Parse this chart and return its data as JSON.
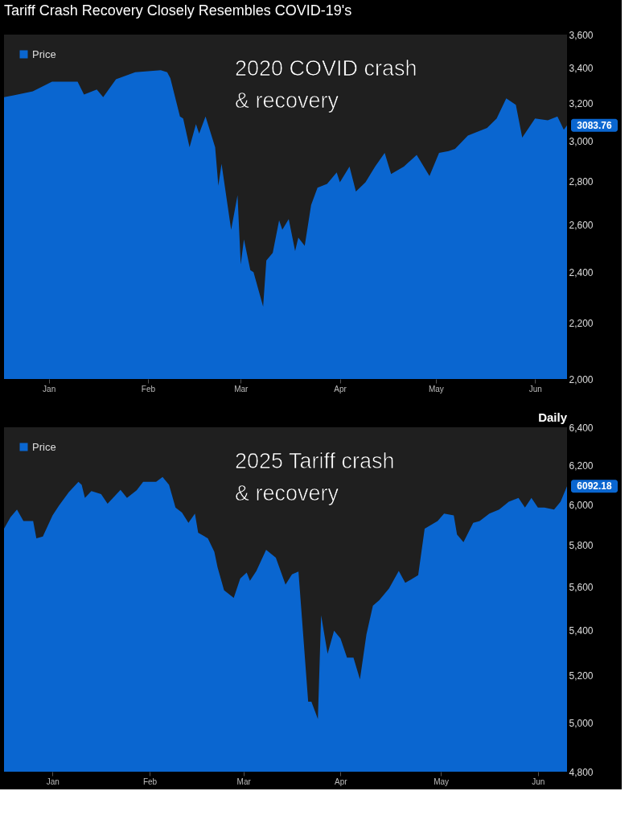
{
  "chart_data": [
    {
      "type": "area",
      "title": "Tariff Crash Recovery Closely Resembles COVID-19's",
      "log": true,
      "legend": "top left",
      "x": [
        "2020-01-01",
        "2020-01-04",
        "2020-01-10",
        "2020-01-16",
        "2020-01-24",
        "2020-01-26",
        "2020-01-30",
        "2020-02-01",
        "2020-02-05",
        "2020-02-11",
        "2020-02-19",
        "2020-02-21",
        "2020-02-22",
        "2020-02-25",
        "2020-02-26",
        "2020-02-28",
        "2020-03-01",
        "2020-03-02",
        "2020-03-04",
        "2020-03-07",
        "2020-03-08",
        "2020-03-09",
        "2020-03-12",
        "2020-03-14",
        "2020-03-15",
        "2020-03-16",
        "2020-03-18",
        "2020-03-19",
        "2020-03-22",
        "2020-03-23",
        "2020-03-25",
        "2020-03-27",
        "2020-03-28",
        "2020-03-30",
        "2020-04-01",
        "2020-04-02",
        "2020-04-04",
        "2020-04-06",
        "2020-04-08",
        "2020-04-11",
        "2020-04-14",
        "2020-04-15",
        "2020-04-18",
        "2020-04-20",
        "2020-04-23",
        "2020-04-26",
        "2020-04-29",
        "2020-05-01",
        "2020-05-05",
        "2020-05-09",
        "2020-05-13",
        "2020-05-16",
        "2020-05-19",
        "2020-05-21",
        "2020-05-25",
        "2020-05-31",
        "2020-06-03",
        "2020-06-06",
        "2020-06-09",
        "2020-06-11",
        "2020-06-15",
        "2020-06-19",
        "2020-06-22",
        "2020-06-24",
        "2020-06-25"
      ],
      "series": [
        {
          "name": "Price",
          "color": "#0a66d0",
          "values": [
            3235,
            3245,
            3268,
            3322,
            3322,
            3250,
            3278,
            3235,
            3336,
            3376,
            3388,
            3376,
            3342,
            3130,
            3120,
            2970,
            3090,
            3040,
            3130,
            2970,
            2782,
            2888,
            2580,
            2737,
            2432,
            2538,
            2408,
            2400,
            2263,
            2448,
            2480,
            2622,
            2580,
            2628,
            2488,
            2546,
            2510,
            2692,
            2772,
            2790,
            2846,
            2798,
            2874,
            2754,
            2798,
            2874,
            2942,
            2838,
            2874,
            2932,
            2828,
            2942,
            2951,
            2962,
            3030,
            3070,
            3120,
            3229,
            3194,
            3020,
            3120,
            3110,
            3130,
            3060,
            3083.76
          ]
        }
      ],
      "xlim": [
        "2020-01-01",
        "2020-06-25"
      ],
      "xticks": [
        {
          "value": "2020-01-15",
          "label": "Jan"
        },
        {
          "value": "2020-02-15",
          "label": "Feb"
        },
        {
          "value": "2020-03-15",
          "label": "Mar"
        },
        {
          "value": "2020-04-15",
          "label": "Apr"
        },
        {
          "value": "2020-05-15",
          "label": "May"
        },
        {
          "value": "2020-06-15",
          "label": "Jun"
        }
      ],
      "ylim": [
        2000,
        3600
      ],
      "yticks": [
        {
          "value": 2000,
          "label": "2,000"
        },
        {
          "value": 2200,
          "label": "2,200"
        },
        {
          "value": 2400,
          "label": "2,400"
        },
        {
          "value": 2600,
          "label": "2,600"
        },
        {
          "value": 2800,
          "label": "2,800"
        },
        {
          "value": 3000,
          "label": "3,000"
        },
        {
          "value": 3200,
          "label": "3,200"
        },
        {
          "value": 3400,
          "label": "3,400"
        },
        {
          "value": 3600,
          "label": "3,600"
        }
      ],
      "annotations": [
        "2020 COVID crash\n& recovery",
        {
          "text": "3083.76",
          "x": "2020-06-25",
          "y": 3083.76
        }
      ]
    },
    {
      "type": "area",
      "subtitle": "Daily",
      "log": true,
      "legend": "top left",
      "x": [
        "2025-01-01",
        "2025-01-03",
        "2025-01-05",
        "2025-01-07",
        "2025-01-10",
        "2025-01-11",
        "2025-01-13",
        "2025-01-16",
        "2025-01-18",
        "2025-01-21",
        "2025-01-24",
        "2025-01-25",
        "2025-01-26",
        "2025-01-28",
        "2025-01-31",
        "2025-02-02",
        "2025-02-06",
        "2025-02-08",
        "2025-02-11",
        "2025-02-13",
        "2025-02-17",
        "2025-02-19",
        "2025-02-21",
        "2025-02-23",
        "2025-02-25",
        "2025-02-27",
        "2025-03-01",
        "2025-03-02",
        "2025-03-05",
        "2025-03-07",
        "2025-03-08",
        "2025-03-10",
        "2025-03-13",
        "2025-03-15",
        "2025-03-17",
        "2025-03-18",
        "2025-03-20",
        "2025-03-23",
        "2025-03-26",
        "2025-03-29",
        "2025-03-31",
        "2025-04-02",
        "2025-04-05",
        "2025-04-06",
        "2025-04-08",
        "2025-04-09",
        "2025-04-11",
        "2025-04-13",
        "2025-04-15",
        "2025-04-17",
        "2025-04-19",
        "2025-04-21",
        "2025-04-23",
        "2025-04-25",
        "2025-04-27",
        "2025-04-30",
        "2025-05-03",
        "2025-05-05",
        "2025-05-09",
        "2025-05-11",
        "2025-05-15",
        "2025-05-17",
        "2025-05-20",
        "2025-05-21",
        "2025-05-23",
        "2025-05-26",
        "2025-05-28",
        "2025-05-31",
        "2025-06-03",
        "2025-06-06",
        "2025-06-09",
        "2025-06-11",
        "2025-06-13",
        "2025-06-15",
        "2025-06-17",
        "2025-06-20",
        "2025-06-22",
        "2025-06-24"
      ],
      "series": [
        {
          "name": "Price",
          "color": "#0a66d0",
          "values": [
            5880,
            5937,
            5975,
            5918,
            5918,
            5833,
            5842,
            5946,
            5995,
            6062,
            6115,
            6100,
            6033,
            6068,
            6053,
            6004,
            6074,
            6033,
            6072,
            6115,
            6115,
            6140,
            6100,
            5985,
            5960,
            5909,
            5955,
            5861,
            5833,
            5768,
            5694,
            5586,
            5550,
            5640,
            5669,
            5630,
            5676,
            5777,
            5740,
            5612,
            5660,
            5674,
            5089,
            5089,
            5016,
            5470,
            5297,
            5400,
            5365,
            5280,
            5280,
            5185,
            5383,
            5514,
            5540,
            5594,
            5676,
            5620,
            5656,
            5880,
            5918,
            5955,
            5946,
            5852,
            5814,
            5909,
            5918,
            5955,
            5975,
            6014,
            6033,
            5985,
            6033,
            5985,
            5985,
            5975,
            6014,
            6092.18
          ]
        }
      ],
      "xlim": [
        "2025-01-01",
        "2025-06-24"
      ],
      "xticks": [
        {
          "value": "2025-01-16",
          "label": "Jan"
        },
        {
          "value": "2025-02-15",
          "label": "Feb"
        },
        {
          "value": "2025-03-16",
          "label": "Mar"
        },
        {
          "value": "2025-04-15",
          "label": "Apr"
        },
        {
          "value": "2025-05-16",
          "label": "May"
        },
        {
          "value": "2025-06-15",
          "label": "Jun"
        }
      ],
      "ylim": [
        4800,
        6400
      ],
      "yticks": [
        {
          "value": 4800,
          "label": "4,800"
        },
        {
          "value": 5000,
          "label": "5,000"
        },
        {
          "value": 5200,
          "label": "5,200"
        },
        {
          "value": 5400,
          "label": "5,400"
        },
        {
          "value": 5600,
          "label": "5,600"
        },
        {
          "value": 5800,
          "label": "5,800"
        },
        {
          "value": 6000,
          "label": "6,000"
        },
        {
          "value": 6200,
          "label": "6,200"
        },
        {
          "value": 6400,
          "label": "6,400"
        }
      ],
      "annotations": [
        "2025 Tariff crash\n& recovery",
        {
          "text": "6092.18",
          "x": "2025-06-24",
          "y": 6092.18
        }
      ]
    }
  ]
}
